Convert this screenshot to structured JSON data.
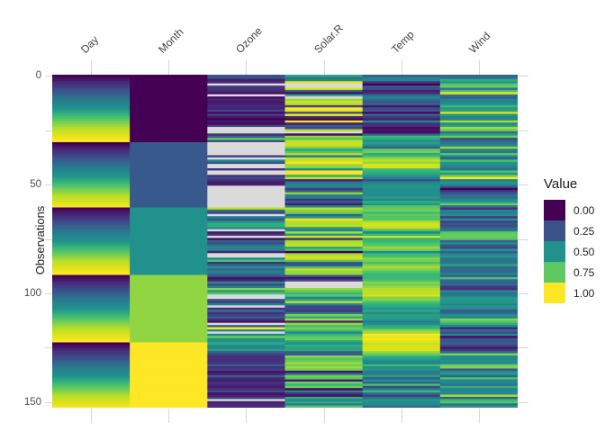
{
  "figure": {
    "y_axis": {
      "title": "Observations",
      "labeled_ticks": [
        0,
        50,
        100,
        150
      ],
      "all_ticks": [
        0,
        25,
        50,
        75,
        100,
        125,
        150
      ],
      "tick_color": "#D6D6D6",
      "label_color": "#4D4D4D"
    },
    "x_axis": {
      "labels": [
        "Day",
        "Month",
        "Ozone",
        "Solar.R",
        "Temp",
        "Wind"
      ],
      "angle_deg": 45
    },
    "legend": {
      "title": "Value",
      "entries": [
        {
          "label": "0.00",
          "color": "#440154"
        },
        {
          "label": "0.25",
          "color": "#3B528B"
        },
        {
          "label": "0.50",
          "color": "#21918C"
        },
        {
          "label": "0.75",
          "color": "#5EC962"
        },
        {
          "label": "1.00",
          "color": "#FDE725"
        }
      ]
    }
  },
  "chart_data": {
    "type": "heatmap",
    "title": "",
    "ylabel": "Observations",
    "xlabel": "",
    "columns": [
      "Day",
      "Month",
      "Ozone",
      "Solar.R",
      "Temp",
      "Wind"
    ],
    "n_rows": 153,
    "y_range": [
      0,
      153
    ],
    "normalization": "per_column_min_max_0_1",
    "na_color": "#DADADA",
    "colormap": "viridis",
    "colormap_anchors": [
      "#440154",
      "#482878",
      "#3E4989",
      "#31688E",
      "#26828E",
      "#21918C",
      "#35B779",
      "#6DCD59",
      "#B5DE2B",
      "#DCE319",
      "#FDE725"
    ],
    "values": {
      "Day": [
        1,
        2,
        3,
        4,
        5,
        6,
        7,
        8,
        9,
        10,
        11,
        12,
        13,
        14,
        15,
        16,
        17,
        18,
        19,
        20,
        21,
        22,
        23,
        24,
        25,
        26,
        27,
        28,
        29,
        30,
        31,
        1,
        2,
        3,
        4,
        5,
        6,
        7,
        8,
        9,
        10,
        11,
        12,
        13,
        14,
        15,
        16,
        17,
        18,
        19,
        20,
        21,
        22,
        23,
        24,
        25,
        26,
        27,
        28,
        29,
        30,
        1,
        2,
        3,
        4,
        5,
        6,
        7,
        8,
        9,
        10,
        11,
        12,
        13,
        14,
        15,
        16,
        17,
        18,
        19,
        20,
        21,
        22,
        23,
        24,
        25,
        26,
        27,
        28,
        29,
        30,
        31,
        1,
        2,
        3,
        4,
        5,
        6,
        7,
        8,
        9,
        10,
        11,
        12,
        13,
        14,
        15,
        16,
        17,
        18,
        19,
        20,
        21,
        22,
        23,
        24,
        25,
        26,
        27,
        28,
        29,
        30,
        31,
        1,
        2,
        3,
        4,
        5,
        6,
        7,
        8,
        9,
        10,
        11,
        12,
        13,
        14,
        15,
        16,
        17,
        18,
        19,
        20,
        21,
        22,
        23,
        24,
        25,
        26,
        27,
        28,
        29,
        30
      ],
      "Month": [
        5,
        5,
        5,
        5,
        5,
        5,
        5,
        5,
        5,
        5,
        5,
        5,
        5,
        5,
        5,
        5,
        5,
        5,
        5,
        5,
        5,
        5,
        5,
        5,
        5,
        5,
        5,
        5,
        5,
        5,
        5,
        6,
        6,
        6,
        6,
        6,
        6,
        6,
        6,
        6,
        6,
        6,
        6,
        6,
        6,
        6,
        6,
        6,
        6,
        6,
        6,
        6,
        6,
        6,
        6,
        6,
        6,
        6,
        6,
        6,
        6,
        7,
        7,
        7,
        7,
        7,
        7,
        7,
        7,
        7,
        7,
        7,
        7,
        7,
        7,
        7,
        7,
        7,
        7,
        7,
        7,
        7,
        7,
        7,
        7,
        7,
        7,
        7,
        7,
        7,
        7,
        7,
        8,
        8,
        8,
        8,
        8,
        8,
        8,
        8,
        8,
        8,
        8,
        8,
        8,
        8,
        8,
        8,
        8,
        8,
        8,
        8,
        8,
        8,
        8,
        8,
        8,
        8,
        8,
        8,
        8,
        8,
        8,
        9,
        9,
        9,
        9,
        9,
        9,
        9,
        9,
        9,
        9,
        9,
        9,
        9,
        9,
        9,
        9,
        9,
        9,
        9,
        9,
        9,
        9,
        9,
        9,
        9,
        9,
        9,
        9,
        9,
        9
      ],
      "Ozone": [
        41,
        36,
        12,
        18,
        null,
        28,
        23,
        19,
        8,
        null,
        7,
        16,
        11,
        14,
        18,
        14,
        34,
        6,
        30,
        11,
        1,
        11,
        4,
        32,
        null,
        null,
        null,
        23,
        45,
        115,
        37,
        null,
        null,
        null,
        null,
        null,
        null,
        29,
        null,
        71,
        39,
        null,
        null,
        23,
        null,
        null,
        21,
        37,
        20,
        12,
        13,
        null,
        null,
        null,
        null,
        null,
        null,
        null,
        null,
        null,
        null,
        135,
        49,
        32,
        null,
        64,
        40,
        77,
        97,
        97,
        85,
        null,
        10,
        27,
        null,
        7,
        48,
        35,
        61,
        79,
        63,
        16,
        null,
        null,
        80,
        108,
        20,
        52,
        82,
        50,
        64,
        59,
        39,
        9,
        16,
        78,
        35,
        66,
        122,
        89,
        110,
        null,
        null,
        44,
        28,
        65,
        null,
        22,
        59,
        23,
        31,
        44,
        21,
        9,
        null,
        45,
        168,
        73,
        null,
        76,
        118,
        84,
        85,
        96,
        78,
        73,
        91,
        47,
        32,
        20,
        23,
        21,
        24,
        44,
        21,
        28,
        9,
        13,
        46,
        18,
        13,
        24,
        16,
        13,
        23,
        36,
        7,
        14,
        30,
        null,
        14,
        18,
        20
      ],
      "Solar.R": [
        190,
        118,
        149,
        313,
        null,
        null,
        299,
        99,
        19,
        194,
        null,
        256,
        290,
        274,
        65,
        334,
        307,
        78,
        322,
        44,
        8,
        320,
        25,
        92,
        66,
        266,
        null,
        13,
        252,
        223,
        279,
        286,
        287,
        242,
        186,
        220,
        264,
        127,
        273,
        291,
        323,
        259,
        250,
        148,
        332,
        322,
        191,
        284,
        37,
        120,
        137,
        150,
        59,
        91,
        250,
        135,
        127,
        47,
        98,
        31,
        138,
        269,
        248,
        236,
        101,
        175,
        314,
        276,
        267,
        272,
        175,
        139,
        264,
        175,
        291,
        48,
        260,
        274,
        285,
        187,
        220,
        7,
        258,
        295,
        294,
        223,
        81,
        82,
        213,
        275,
        253,
        254,
        83,
        24,
        77,
        null,
        null,
        null,
        255,
        229,
        207,
        222,
        137,
        192,
        273,
        157,
        64,
        71,
        51,
        115,
        244,
        190,
        259,
        36,
        255,
        212,
        238,
        215,
        153,
        203,
        225,
        237,
        188,
        167,
        197,
        183,
        189,
        95,
        92,
        252,
        220,
        230,
        259,
        236,
        259,
        238,
        24,
        112,
        237,
        224,
        27,
        238,
        201,
        238,
        14,
        139,
        49,
        20,
        193,
        145,
        191,
        131,
        223
      ],
      "Temp": [
        67,
        72,
        74,
        62,
        56,
        66,
        65,
        59,
        61,
        69,
        74,
        69,
        66,
        68,
        58,
        64,
        66,
        57,
        68,
        62,
        59,
        73,
        61,
        61,
        57,
        58,
        57,
        67,
        81,
        79,
        76,
        78,
        74,
        67,
        84,
        85,
        79,
        82,
        87,
        90,
        87,
        93,
        92,
        82,
        80,
        79,
        77,
        72,
        65,
        73,
        76,
        77,
        76,
        76,
        76,
        75,
        78,
        73,
        80,
        77,
        83,
        84,
        85,
        81,
        84,
        83,
        83,
        88,
        92,
        92,
        89,
        82,
        73,
        81,
        91,
        80,
        81,
        82,
        84,
        87,
        85,
        74,
        81,
        82,
        86,
        85,
        82,
        86,
        88,
        86,
        83,
        81,
        81,
        81,
        82,
        86,
        85,
        87,
        89,
        90,
        90,
        92,
        86,
        86,
        82,
        80,
        79,
        77,
        79,
        76,
        78,
        78,
        77,
        72,
        75,
        79,
        81,
        86,
        88,
        97,
        94,
        96,
        94,
        91,
        92,
        93,
        93,
        87,
        84,
        80,
        78,
        75,
        73,
        81,
        76,
        77,
        71,
        71,
        78,
        67,
        76,
        68,
        82,
        64,
        71,
        81,
        69,
        63,
        70,
        77,
        75,
        76,
        68
      ],
      "Wind": [
        7.4,
        8,
        12.6,
        11.5,
        14.3,
        14.9,
        8.6,
        13.8,
        20.1,
        8.6,
        6.9,
        9.7,
        9.2,
        10.9,
        13.2,
        11.5,
        12,
        18.4,
        11.5,
        9.7,
        9.7,
        16.6,
        9.7,
        12,
        16.6,
        14.9,
        8,
        12,
        14.9,
        5.7,
        7.4,
        8.6,
        9.7,
        16.1,
        9.2,
        8.6,
        14.3,
        9.7,
        6.9,
        13.8,
        11.5,
        10.9,
        9.2,
        8,
        13.8,
        11.5,
        14.9,
        20.7,
        9.2,
        11.5,
        10.3,
        6.3,
        1.7,
        4.6,
        6.3,
        8,
        8,
        10.3,
        11.5,
        14.9,
        8,
        4.1,
        9.2,
        9.2,
        10.9,
        4.6,
        10.9,
        5.1,
        6.3,
        5.7,
        7.4,
        8.6,
        14.3,
        14.9,
        14.9,
        14.3,
        6.9,
        10.3,
        6.3,
        5.1,
        11.5,
        6.9,
        9.7,
        11.5,
        8.6,
        8,
        8.6,
        12,
        7.4,
        7.4,
        7.4,
        9.2,
        6.9,
        13.8,
        7.4,
        6.9,
        7.4,
        4.6,
        4,
        10.3,
        8,
        8.6,
        11.5,
        11.5,
        11.5,
        9.7,
        11.5,
        10.3,
        6.3,
        7.4,
        10.9,
        10.3,
        15.5,
        14.3,
        12.6,
        9.7,
        3.4,
        8,
        5.7,
        9.7,
        2.3,
        6.3,
        6.3,
        6.9,
        5.1,
        2.8,
        4.6,
        7.4,
        15.5,
        10.9,
        10.3,
        10.9,
        9.7,
        14.9,
        15.5,
        6.3,
        10.9,
        11.5,
        6.9,
        13.8,
        10.3,
        10.3,
        8,
        12.6,
        9.2,
        10.3,
        10.3,
        16.6,
        6.9,
        13.2,
        14.3,
        8,
        11.5
      ]
    },
    "legend_position": "right",
    "grid": false
  }
}
